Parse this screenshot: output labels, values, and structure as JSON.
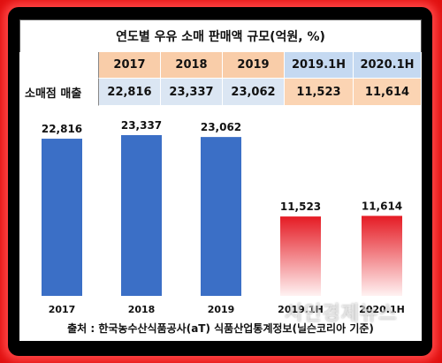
{
  "table": {
    "title": "연도별 우유 소매 판매액 규모(억원, %)",
    "row_label": "소매점 매출",
    "years": [
      "2017",
      "2018",
      "2019",
      "2019.1H",
      "2020.1H"
    ],
    "values": [
      "22,816",
      "23,337",
      "23,062",
      "11,523",
      "11,614"
    ]
  },
  "chart_data": {
    "type": "bar",
    "title": "연도별 우유 소매 판매액 규모(억원, %)",
    "categories": [
      "2017",
      "2018",
      "2019",
      "2019.1H",
      "2020.1H"
    ],
    "values": [
      22816,
      23337,
      23062,
      11523,
      11614
    ],
    "value_labels": [
      "22,816",
      "23,337",
      "23,062",
      "11,523",
      "11,614"
    ],
    "xlabel": "",
    "ylabel": "",
    "ylim": [
      0,
      25000
    ],
    "grid": false,
    "legend": "none"
  },
  "colors": {
    "annual_bar": "#3b6fc6",
    "half_bar_top": "#e51b24",
    "half_bar_bottom": "#fff2f2",
    "year_header_bg": "#f9cda9",
    "half_header_bg": "#c5d9f1",
    "year_value_bg": "#dbe6f3",
    "half_value_bg": "#fbd4b3",
    "frame": "#000000",
    "glow": "#ff3b3b"
  },
  "footer": {
    "source": "출처 : 한국농수산식품공사(aT) 식품산업통계정보(닐슨코리아 기준)"
  },
  "watermark": {
    "text": "시인경제뉴스"
  }
}
